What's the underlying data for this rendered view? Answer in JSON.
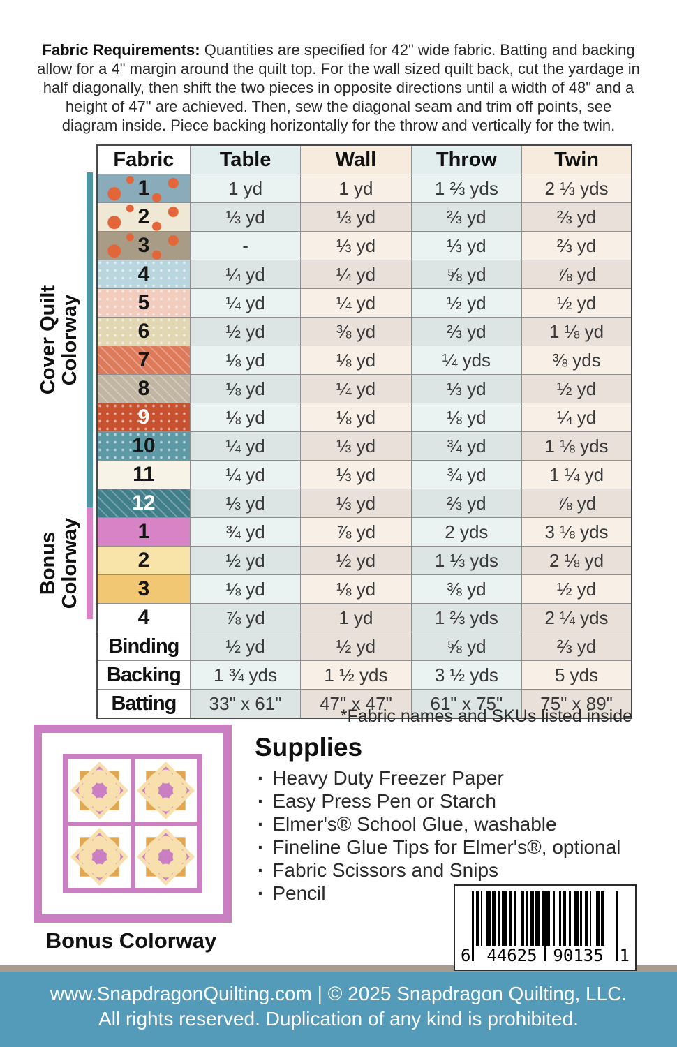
{
  "intro": {
    "label": "Fabric Requirements:",
    "text": " Quantities are specified for 42\" wide fabric. Batting and backing allow for a 4\" margin around the quilt top. For the wall sized quilt back, cut the yardage in half diagonally, then shift the two pieces in opposite directions until a width of 48\" and a height of 47\" are achieved. Then, sew the diagonal seam and trim off points, see diagram inside. Piece backing horizontally for the throw and vertically for the twin."
  },
  "table": {
    "headers": [
      "Fabric",
      "Table",
      "Wall",
      "Throw",
      "Twin"
    ],
    "cover_rows": [
      {
        "num": "1",
        "swatch": "#8aabb9",
        "num_color": "#161616",
        "pattern": "floral",
        "shade": "L",
        "values": [
          "1 yd",
          "1 yd",
          "1 ⅔ yds",
          "2 ⅓ yds"
        ]
      },
      {
        "num": "2",
        "swatch": "#efe8d4",
        "num_color": "#161616",
        "pattern": "floral",
        "shade": "D",
        "values": [
          "⅓ yd",
          "⅓ yd",
          "⅔ yd",
          "⅔ yd"
        ]
      },
      {
        "num": "3",
        "swatch": "#a99c86",
        "num_color": "#161616",
        "pattern": "floral",
        "shade": "L",
        "values": [
          "-",
          "⅓ yd",
          "⅓ yd",
          "⅔ yd"
        ]
      },
      {
        "num": "4",
        "swatch": "#b9d6de",
        "num_color": "#161616",
        "pattern": "dots",
        "shade": "D",
        "values": [
          "¼ yd",
          "¼ yd",
          "⅝ yd",
          "⅞ yd"
        ]
      },
      {
        "num": "5",
        "swatch": "#f2cdbd",
        "num_color": "#161616",
        "pattern": "dots",
        "shade": "L",
        "values": [
          "¼ yd",
          "¼ yd",
          "½ yd",
          "½ yd"
        ]
      },
      {
        "num": "6",
        "swatch": "#e2d7b3",
        "num_color": "#161616",
        "pattern": "dots",
        "shade": "D",
        "values": [
          "½ yd",
          "⅜ yd",
          "⅔ yd",
          "1 ⅛ yd"
        ]
      },
      {
        "num": "7",
        "swatch": "#dd7a5a",
        "num_color": "#161616",
        "pattern": "lines",
        "shade": "L",
        "values": [
          "⅛ yd",
          "⅛ yd",
          "¼ yds",
          "⅜ yds"
        ]
      },
      {
        "num": "8",
        "swatch": "#c1b6a2",
        "num_color": "#161616",
        "pattern": "lines",
        "shade": "D",
        "values": [
          "⅛ yd",
          "¼ yd",
          "⅓ yd",
          "½ yd"
        ]
      },
      {
        "num": "9",
        "swatch": "#c8512f",
        "num_color": "#ffffff",
        "pattern": "dots",
        "shade": "L",
        "values": [
          "⅛ yd",
          "⅛ yd",
          "⅛ yd",
          "¼ yd"
        ]
      },
      {
        "num": "10",
        "swatch": "#5e9aa6",
        "num_color": "#161616",
        "pattern": "dots",
        "shade": "D",
        "values": [
          "¼ yd",
          "⅓ yd",
          "¾ yd",
          "1 ⅛ yds"
        ]
      },
      {
        "num": "11",
        "swatch": "#f7f3e6",
        "num_color": "#161616",
        "pattern": "none",
        "shade": "L",
        "values": [
          "¼ yd",
          "⅓ yd",
          "¾ yd",
          "1 ¼ yd"
        ]
      },
      {
        "num": "12",
        "swatch": "#417f8b",
        "num_color": "#ffffff",
        "pattern": "lines",
        "shade": "D",
        "values": [
          "⅓ yd",
          "⅓ yd",
          "⅔ yd",
          "⅞ yd"
        ]
      }
    ],
    "bonus_rows": [
      {
        "num": "1",
        "swatch": "#d883c6",
        "num_color": "#161616",
        "pattern": "none",
        "shade": "L",
        "values": [
          "¾ yd",
          "⅞ yd",
          "2 yds",
          "3 ⅛ yds"
        ]
      },
      {
        "num": "2",
        "swatch": "#f8e3a9",
        "num_color": "#161616",
        "pattern": "none",
        "shade": "D",
        "values": [
          "½ yd",
          "½ yd",
          "1 ⅓ yds",
          "2 ⅛ yd"
        ]
      },
      {
        "num": "3",
        "swatch": "#f1c774",
        "num_color": "#161616",
        "pattern": "none",
        "shade": "L",
        "values": [
          "⅛ yd",
          "⅛ yd",
          "⅜ yd",
          "½ yd"
        ]
      },
      {
        "num": "4",
        "swatch": "#ffffff",
        "num_color": "#161616",
        "pattern": "none",
        "shade": "D",
        "values": [
          "⅞ yd",
          "1 yd",
          "1 ⅔ yds",
          "2 ¼ yds"
        ]
      }
    ],
    "extra_rows": [
      {
        "label": "Binding",
        "shade": "D",
        "values": [
          "½ yd",
          "½ yd",
          "⅝ yd",
          "⅔ yd"
        ]
      },
      {
        "label": "Backing",
        "shade": "L",
        "values": [
          "1 ¾ yds",
          "1 ½ yds",
          "3 ½ yds",
          "5 yds"
        ]
      },
      {
        "label": "Batting",
        "shade": "D",
        "values": [
          "33\" x 61\"",
          "47\" x 47\"",
          "61\" x 75\"",
          "75\" x 89\""
        ]
      }
    ]
  },
  "sidebars": {
    "cover_label": "Cover Quilt\nColorway",
    "bonus_label": "Bonus\nColorway"
  },
  "note": "*Fabric names and SKUs listed inside",
  "supplies": {
    "title": "Supplies",
    "items": [
      "Heavy Duty Freezer Paper",
      "Easy Press Pen or Starch",
      "Elmer's® School Glue, washable",
      "Fineline Glue Tips for Elmer's®, optional",
      "Fabric Scissors and Snips",
      "Pencil"
    ]
  },
  "quilt_caption": "Bonus Colorway",
  "barcode": {
    "left_digit": "6",
    "group1": "44625",
    "group2": "90135",
    "right_digit": "1"
  },
  "footer": {
    "line1": "www.SnapdragonQuilting.com | © 2025 Snapdragon Quilting, LLC.",
    "line2": "All rights reserved. Duplication of any kind is prohibited."
  },
  "colors": {
    "teal_bar": "#4e96a2",
    "pink_bar": "#d985c5",
    "footer_blue": "#549bba",
    "footer_strip": "#a79c8e",
    "quilt_pink": "#cb7fc3",
    "quilt_gold": "#e2a851",
    "quilt_cream": "#f8dfae"
  }
}
